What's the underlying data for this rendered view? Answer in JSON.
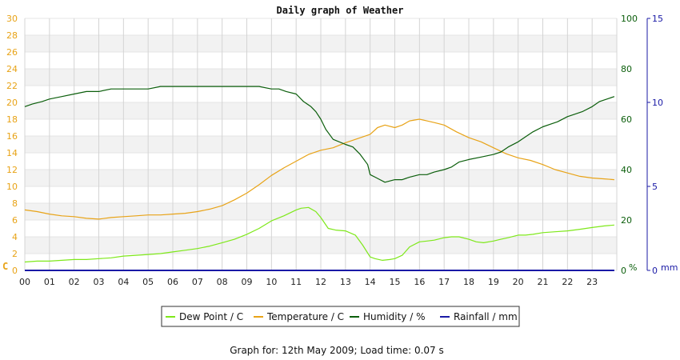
{
  "chart_data": {
    "type": "line",
    "title": "Daily graph of Weather",
    "footer": "Graph for: 12th May 2009; Load time: 0.07 s",
    "left_axis": {
      "unit_label": "C",
      "ticks": [
        0,
        2,
        4,
        6,
        8,
        10,
        12,
        14,
        16,
        18,
        20,
        22,
        24,
        26,
        28,
        30
      ],
      "ylim": [
        0,
        30
      ],
      "color": "#e8a317"
    },
    "right_axis_1": {
      "unit_label": "%",
      "ticks": [
        0,
        20,
        40,
        60,
        80,
        100
      ],
      "ylim": [
        0,
        100
      ],
      "color": "#0b5e0b"
    },
    "right_axis_2": {
      "unit_label": "mm",
      "ticks": [
        0,
        5,
        10,
        15
      ],
      "ylim": [
        0,
        15
      ],
      "color": "#1a1aa6"
    },
    "x_tick_labels": [
      "00",
      "01",
      "02",
      "03",
      "04",
      "05",
      "06",
      "07",
      "08",
      "09",
      "10",
      "11",
      "12",
      "13",
      "14",
      "15",
      "16",
      "17",
      "18",
      "19",
      "20",
      "21",
      "22",
      "23"
    ],
    "xlim": [
      0,
      24
    ],
    "grid": true,
    "series": [
      {
        "name": "Dew Point / C",
        "axis": "left",
        "color": "#7ee81a",
        "x": [
          0,
          0.5,
          1,
          1.5,
          2,
          2.5,
          3,
          3.5,
          4,
          4.5,
          5,
          5.5,
          6,
          6.5,
          7,
          7.5,
          8,
          8.5,
          9,
          9.5,
          10,
          10.5,
          11,
          11.2,
          11.5,
          11.8,
          12,
          12.3,
          12.6,
          13,
          13.4,
          13.7,
          14,
          14.2,
          14.5,
          14.8,
          15,
          15.3,
          15.6,
          16,
          16.3,
          16.6,
          17,
          17.3,
          17.6,
          18,
          18.3,
          18.6,
          19,
          19.3,
          19.6,
          20,
          20.3,
          20.6,
          21,
          21.5,
          22,
          22.5,
          23,
          23.5,
          23.9
        ],
        "y": [
          1.0,
          1.1,
          1.1,
          1.2,
          1.3,
          1.3,
          1.4,
          1.5,
          1.7,
          1.8,
          1.9,
          2.0,
          2.2,
          2.4,
          2.6,
          2.9,
          3.3,
          3.7,
          4.3,
          5.0,
          5.9,
          6.5,
          7.2,
          7.4,
          7.5,
          7.0,
          6.3,
          5.0,
          4.8,
          4.7,
          4.2,
          3.0,
          1.6,
          1.4,
          1.2,
          1.3,
          1.4,
          1.8,
          2.8,
          3.4,
          3.5,
          3.6,
          3.9,
          4.0,
          4.0,
          3.7,
          3.4,
          3.3,
          3.5,
          3.7,
          3.9,
          4.2,
          4.2,
          4.3,
          4.5,
          4.6,
          4.7,
          4.9,
          5.1,
          5.3,
          5.4
        ]
      },
      {
        "name": "Temperature / C",
        "axis": "left",
        "color": "#e8a317",
        "x": [
          0,
          0.5,
          1,
          1.5,
          2,
          2.5,
          3,
          3.5,
          4,
          4.5,
          5,
          5.5,
          6,
          6.5,
          7,
          7.5,
          8,
          8.5,
          9,
          9.5,
          10,
          10.5,
          11,
          11.5,
          12,
          12.5,
          13,
          13.5,
          14,
          14.3,
          14.6,
          15,
          15.3,
          15.6,
          16,
          16.3,
          16.6,
          17,
          17.5,
          18,
          18.5,
          19,
          19.5,
          20,
          20.5,
          21,
          21.5,
          22,
          22.5,
          23,
          23.5,
          23.9
        ],
        "y": [
          7.2,
          7.0,
          6.7,
          6.5,
          6.4,
          6.2,
          6.1,
          6.3,
          6.4,
          6.5,
          6.6,
          6.6,
          6.7,
          6.8,
          7.0,
          7.3,
          7.7,
          8.4,
          9.2,
          10.2,
          11.3,
          12.2,
          13.0,
          13.8,
          14.3,
          14.6,
          15.2,
          15.7,
          16.2,
          17.0,
          17.3,
          17.0,
          17.3,
          17.8,
          18.0,
          17.8,
          17.6,
          17.3,
          16.5,
          15.8,
          15.3,
          14.6,
          13.9,
          13.4,
          13.1,
          12.6,
          12.0,
          11.6,
          11.2,
          11.0,
          10.9,
          10.8
        ]
      },
      {
        "name": "Humidity / %",
        "axis": "right_1",
        "color": "#0b5e0b",
        "x": [
          0,
          0.3,
          0.7,
          1,
          1.5,
          2,
          2.5,
          3,
          3.5,
          4,
          4.5,
          5,
          5.5,
          6,
          6.5,
          7,
          7.5,
          8,
          8.3,
          8.6,
          9,
          9.5,
          10,
          10.3,
          10.6,
          11,
          11.3,
          11.6,
          11.8,
          12,
          12.2,
          12.5,
          13,
          13.3,
          13.6,
          13.9,
          14,
          14.2,
          14.4,
          14.6,
          15,
          15.3,
          15.6,
          16,
          16.3,
          16.6,
          17,
          17.3,
          17.6,
          18,
          18.5,
          19,
          19.3,
          19.6,
          20,
          20.3,
          20.6,
          21,
          21.3,
          21.6,
          22,
          22.3,
          22.6,
          23,
          23.3,
          23.6,
          23.9
        ],
        "y": [
          65,
          66,
          67,
          68,
          69,
          70,
          71,
          71,
          72,
          72,
          72,
          72,
          73,
          73,
          73,
          73,
          73,
          73,
          73,
          73,
          73,
          73,
          72,
          72,
          71,
          70,
          67,
          65,
          63,
          60,
          56,
          52,
          50,
          49,
          46,
          42,
          38,
          37,
          36,
          35,
          36,
          36,
          37,
          38,
          38,
          39,
          40,
          41,
          43,
          44,
          45,
          46,
          47,
          49,
          51,
          53,
          55,
          57,
          58,
          59,
          61,
          62,
          63,
          65,
          67,
          68,
          69
        ]
      },
      {
        "name": "Rainfall / mm",
        "axis": "right_2",
        "color": "#1a1aa6",
        "x": [
          0,
          23.9
        ],
        "y": [
          0,
          0
        ]
      }
    ]
  }
}
